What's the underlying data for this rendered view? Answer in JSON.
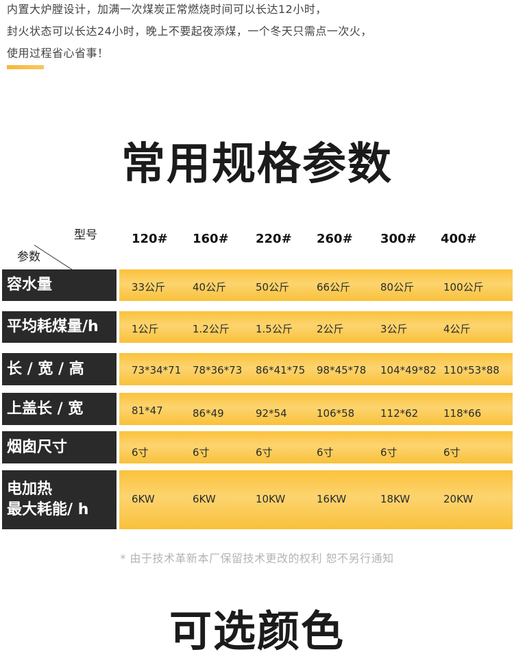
{
  "intro": {
    "lines": [
      "内置大炉膛设计，加满一次煤炭正常燃烧时间可以长达12小时，",
      "封火状态可以长达24小时，晚上不要起夜添煤，一个冬天只需点一次火，",
      "使用过程省心省事！"
    ]
  },
  "specs_title": "常用规格参数",
  "table": {
    "corner_model": "型号",
    "corner_param": "参数",
    "columns": [
      "120#",
      "160#",
      "220#",
      "260#",
      "300#",
      "400#"
    ],
    "rows": [
      {
        "label": "容水量",
        "values": [
          "33公斤",
          "40公斤",
          "50公斤",
          "66公斤",
          "80公斤",
          "100公斤"
        ]
      },
      {
        "label": "平均耗煤量/h",
        "values": [
          "1公斤",
          "1.2公斤",
          "1.5公斤",
          "2公斤",
          "3公斤",
          "4公斤"
        ]
      },
      {
        "label": "长 / 宽 / 高",
        "values": [
          "73*34*71",
          "78*36*73",
          "86*41*75",
          "98*45*78",
          "104*49*82",
          "110*53*88"
        ]
      },
      {
        "label": "上盖长 / 宽",
        "values": [
          "81*47",
          "86*49",
          "92*54",
          "106*58",
          "112*62",
          "118*66"
        ]
      },
      {
        "label": "烟囱尺寸",
        "values": [
          "6寸",
          "6寸",
          "6寸",
          "6寸",
          "6寸",
          "6寸"
        ]
      },
      {
        "label_lines": [
          "电加热",
          "最大耗能/ h"
        ],
        "values": [
          "6KW",
          "6KW",
          "10KW",
          "16KW",
          "18KW",
          "20KW"
        ]
      }
    ]
  },
  "notice": "* 由于技术革新本厂保留技术更改的权利 恕不另行通知",
  "colors_title": "可选颜色",
  "colors": {
    "accent": "#f6b83c",
    "label_bg": "#2a2a2a",
    "band": "#fbc23d"
  }
}
